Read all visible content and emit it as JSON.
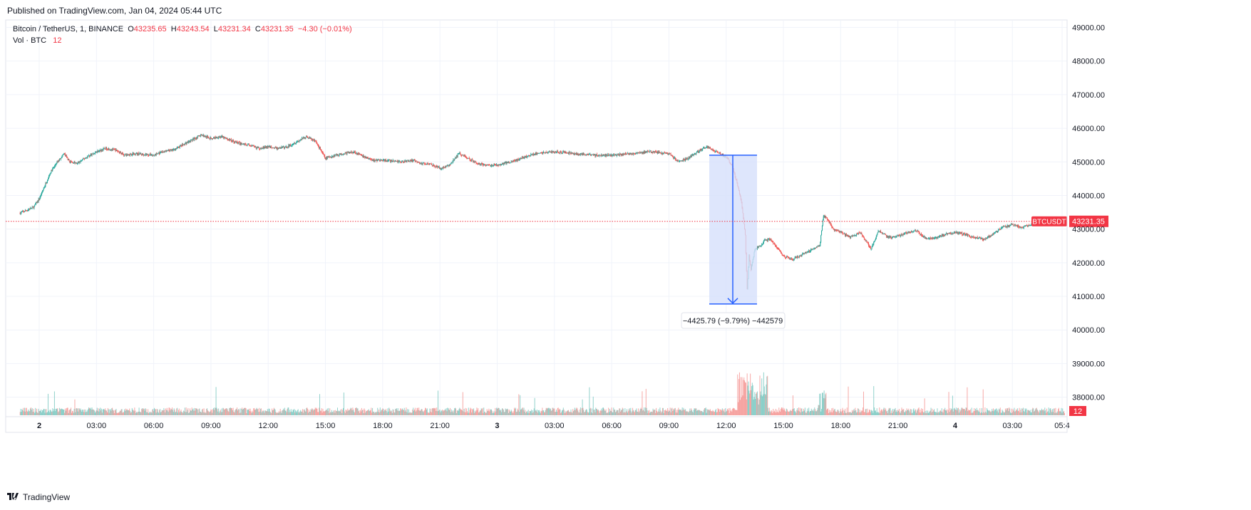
{
  "header": {
    "published": "Published on TradingView.com, Jan 04, 2024 05:44 UTC"
  },
  "legend": {
    "symbol": "Bitcoin / TetherUS, 1, BINANCE",
    "o_label": "O",
    "o_value": "43235.65",
    "h_label": "H",
    "h_value": "43243.54",
    "l_label": "L",
    "l_value": "43231.34",
    "c_label": "C",
    "c_value": "43231.35",
    "change": "−4.30 (−0.01%)",
    "vol_label": "Vol · BTC",
    "vol_value": "12"
  },
  "footer": {
    "brand": "TradingView"
  },
  "colors": {
    "up": "#26a69a",
    "down": "#ef5350",
    "last_price": "#f23645",
    "measure_fill": "#d6e0fb",
    "measure_line": "#2962ff",
    "grid": "#f0f3fa"
  },
  "chart_data": {
    "type": "candlestick",
    "x_tick_labels": [
      "2",
      "03:00",
      "06:00",
      "09:00",
      "12:00",
      "15:00",
      "18:00",
      "21:00",
      "3",
      "03:00",
      "06:00",
      "09:00",
      "12:00",
      "15:00",
      "18:00",
      "21:00",
      "4",
      "03:00",
      "05:4"
    ],
    "y_tick_labels": [
      "49000.00",
      "48000.00",
      "47000.00",
      "46000.00",
      "45000.00",
      "44000.00",
      "43000.00",
      "42000.00",
      "41000.00",
      "40000.00",
      "39000.00",
      "38000.00"
    ],
    "ylim": [
      37600,
      49300
    ],
    "x_range_hours": [
      -1.0,
      53.75
    ],
    "price_path": [
      [
        -1.0,
        43480
      ],
      [
        -0.7,
        43550
      ],
      [
        -0.3,
        43650
      ],
      [
        0.0,
        43900
      ],
      [
        0.3,
        44300
      ],
      [
        0.6,
        44700
      ],
      [
        0.9,
        44950
      ],
      [
        1.1,
        45100
      ],
      [
        1.3,
        45250
      ],
      [
        1.6,
        45000
      ],
      [
        2.0,
        44950
      ],
      [
        2.5,
        45150
      ],
      [
        3.0,
        45300
      ],
      [
        3.5,
        45400
      ],
      [
        4.0,
        45350
      ],
      [
        4.5,
        45200
      ],
      [
        5.0,
        45250
      ],
      [
        6.0,
        45200
      ],
      [
        6.5,
        45300
      ],
      [
        7.0,
        45350
      ],
      [
        7.5,
        45500
      ],
      [
        8.0,
        45650
      ],
      [
        8.5,
        45800
      ],
      [
        9.0,
        45700
      ],
      [
        9.5,
        45750
      ],
      [
        10.0,
        45650
      ],
      [
        10.5,
        45550
      ],
      [
        11.0,
        45500
      ],
      [
        11.5,
        45400
      ],
      [
        12.0,
        45450
      ],
      [
        12.5,
        45400
      ],
      [
        13.0,
        45450
      ],
      [
        13.5,
        45600
      ],
      [
        14.0,
        45750
      ],
      [
        14.5,
        45600
      ],
      [
        15.0,
        45100
      ],
      [
        15.5,
        45200
      ],
      [
        16.0,
        45250
      ],
      [
        16.5,
        45300
      ],
      [
        17.0,
        45150
      ],
      [
        17.5,
        45050
      ],
      [
        18.0,
        45050
      ],
      [
        19.0,
        45000
      ],
      [
        19.5,
        45050
      ],
      [
        20.0,
        44950
      ],
      [
        20.5,
        44950
      ],
      [
        21.0,
        44800
      ],
      [
        21.5,
        44900
      ],
      [
        22.0,
        45250
      ],
      [
        22.5,
        45100
      ],
      [
        23.0,
        44950
      ],
      [
        23.5,
        44900
      ],
      [
        24.0,
        44900
      ],
      [
        25.0,
        45050
      ],
      [
        26.0,
        45250
      ],
      [
        27.0,
        45300
      ],
      [
        28.0,
        45250
      ],
      [
        29.0,
        45200
      ],
      [
        30.0,
        45200
      ],
      [
        31.0,
        45250
      ],
      [
        32.0,
        45300
      ],
      [
        33.0,
        45250
      ],
      [
        33.5,
        45000
      ],
      [
        34.0,
        45100
      ],
      [
        34.5,
        45300
      ],
      [
        35.0,
        45450
      ],
      [
        35.5,
        45300
      ],
      [
        36.0,
        45150
      ],
      [
        36.3,
        44900
      ],
      [
        36.6,
        44300
      ],
      [
        36.8,
        43800
      ],
      [
        37.0,
        42800
      ],
      [
        37.1,
        41200
      ],
      [
        37.2,
        42200
      ],
      [
        37.3,
        41800
      ],
      [
        37.5,
        42400
      ],
      [
        37.8,
        42500
      ],
      [
        38.0,
        42650
      ],
      [
        38.3,
        42700
      ],
      [
        38.6,
        42500
      ],
      [
        39.0,
        42200
      ],
      [
        39.5,
        42100
      ],
      [
        40.0,
        42250
      ],
      [
        40.5,
        42400
      ],
      [
        40.9,
        42500
      ],
      [
        41.1,
        43400
      ],
      [
        41.3,
        43300
      ],
      [
        41.6,
        43000
      ],
      [
        42.0,
        42900
      ],
      [
        42.5,
        42750
      ],
      [
        43.0,
        42900
      ],
      [
        43.4,
        42600
      ],
      [
        43.6,
        42400
      ],
      [
        43.8,
        42700
      ],
      [
        44.0,
        42950
      ],
      [
        44.5,
        42750
      ],
      [
        45.0,
        42800
      ],
      [
        45.5,
        42900
      ],
      [
        46.0,
        42950
      ],
      [
        46.5,
        42700
      ],
      [
        47.0,
        42750
      ],
      [
        47.5,
        42850
      ],
      [
        48.0,
        42900
      ],
      [
        48.5,
        42850
      ],
      [
        49.0,
        42750
      ],
      [
        49.5,
        42700
      ],
      [
        50.0,
        42850
      ],
      [
        50.5,
        43050
      ],
      [
        51.0,
        43150
      ],
      [
        51.5,
        43050
      ],
      [
        52.0,
        43150
      ],
      [
        52.5,
        43200
      ],
      [
        53.0,
        43230
      ],
      [
        53.75,
        43231.35
      ]
    ],
    "measure": {
      "start_price": 45200,
      "end_price": 40774.21,
      "change": "−4425.79 (−9.79%) −442579"
    },
    "last_price": {
      "symbol": "BTCUSDT",
      "value": "43231.35"
    },
    "volume": {
      "last_value": "12"
    },
    "grid": true
  }
}
